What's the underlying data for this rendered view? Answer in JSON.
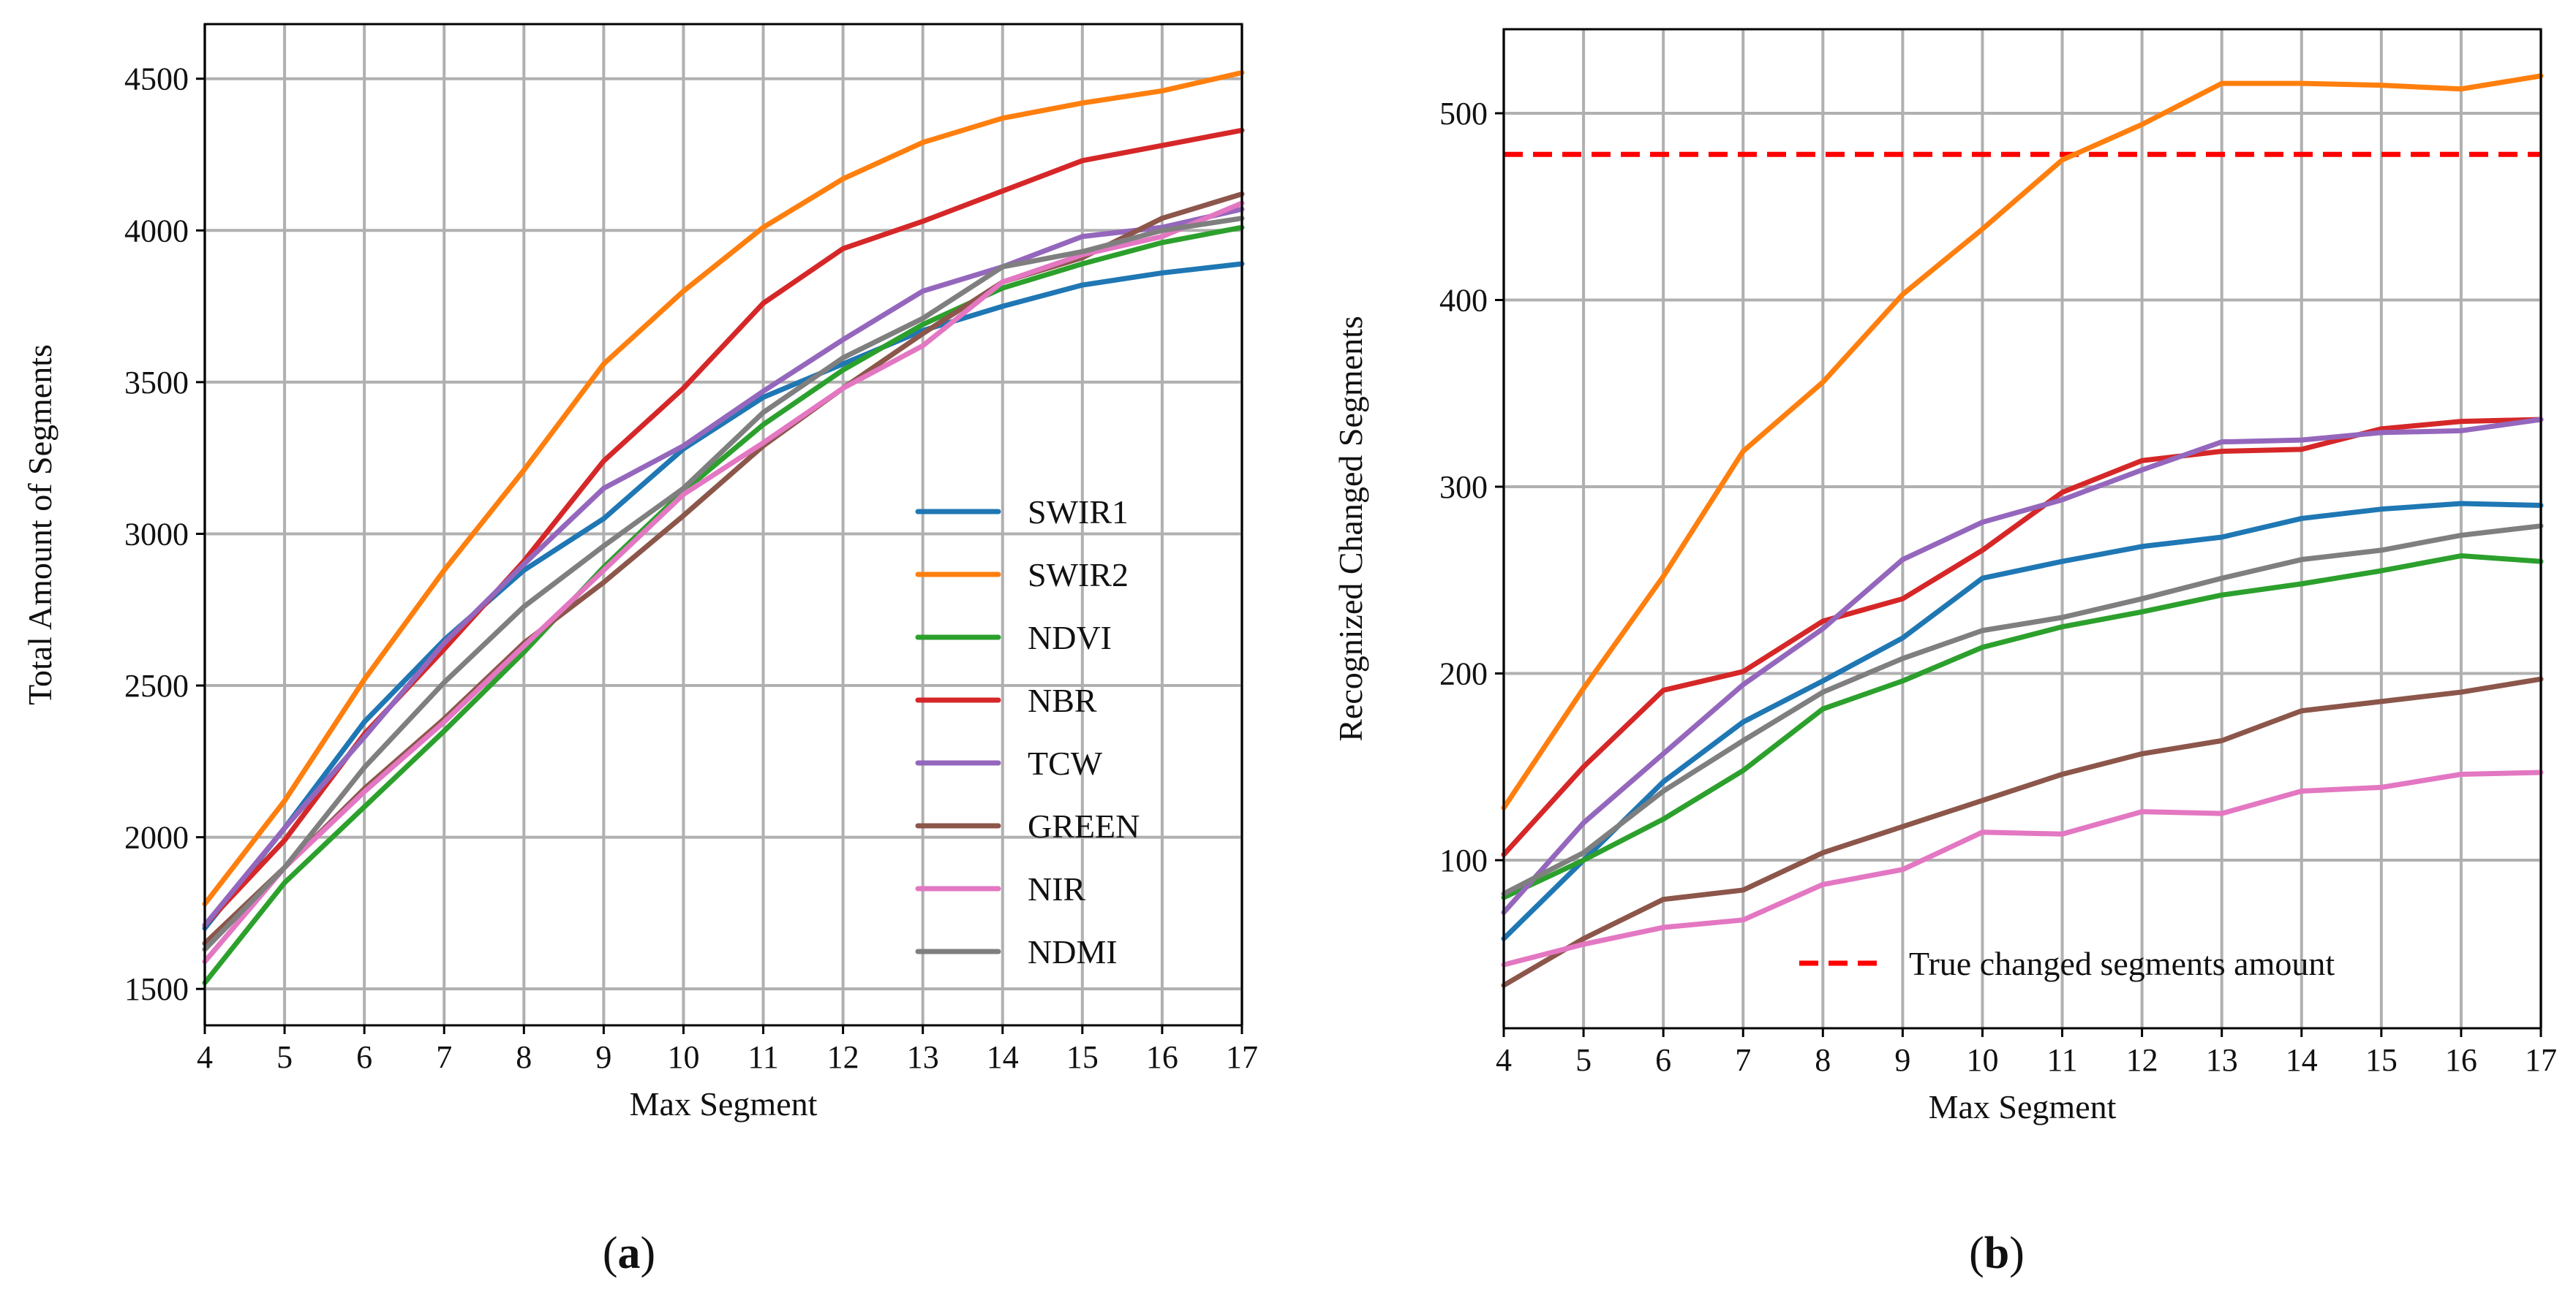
{
  "chart_data": [
    {
      "type": "line",
      "panel_label": "a",
      "xlabel": "Max Segment",
      "ylabel": "Total Amount of Segments",
      "xlim": [
        4,
        17
      ],
      "ylim": [
        1380,
        4680
      ],
      "xticks": [
        4,
        5,
        6,
        7,
        8,
        9,
        10,
        11,
        12,
        13,
        14,
        15,
        16,
        17
      ],
      "yticks": [
        1500,
        2000,
        2500,
        3000,
        3500,
        4000,
        4500
      ],
      "grid": true,
      "legend_position": "lower-right",
      "x": [
        4,
        5,
        6,
        7,
        8,
        9,
        10,
        11,
        12,
        13,
        14,
        15,
        16,
        17
      ],
      "series": [
        {
          "name": "SWIR1",
          "color": "#1f77b4",
          "values": [
            1700,
            2030,
            2380,
            2650,
            2880,
            3050,
            3280,
            3450,
            3560,
            3670,
            3750,
            3820,
            3860,
            3890
          ]
        },
        {
          "name": "SWIR2",
          "color": "#ff7f0e",
          "values": [
            1780,
            2120,
            2520,
            2880,
            3210,
            3560,
            3800,
            4010,
            4170,
            4290,
            4370,
            4420,
            4460,
            4520
          ]
        },
        {
          "name": "NDVI",
          "color": "#2ca02c",
          "values": [
            1520,
            1850,
            2100,
            2350,
            2610,
            2890,
            3140,
            3360,
            3540,
            3690,
            3810,
            3890,
            3960,
            4010
          ]
        },
        {
          "name": "NBR",
          "color": "#d62728",
          "values": [
            1710,
            1990,
            2340,
            2620,
            2910,
            3240,
            3480,
            3760,
            3940,
            4030,
            4130,
            4230,
            4280,
            4330
          ]
        },
        {
          "name": "TCW",
          "color": "#9467bd",
          "values": [
            1710,
            2030,
            2330,
            2640,
            2900,
            3150,
            3290,
            3470,
            3640,
            3800,
            3880,
            3980,
            4010,
            4070
          ]
        },
        {
          "name": "GREEN",
          "color": "#8c564b",
          "values": [
            1650,
            1900,
            2160,
            2390,
            2640,
            2840,
            3060,
            3290,
            3480,
            3660,
            3830,
            3910,
            4040,
            4120
          ]
        },
        {
          "name": "NIR",
          "color": "#e377c2",
          "values": [
            1590,
            1900,
            2150,
            2380,
            2630,
            2880,
            3130,
            3300,
            3480,
            3620,
            3830,
            3920,
            3980,
            4090
          ]
        },
        {
          "name": "NDMI",
          "color": "#7f7f7f",
          "values": [
            1630,
            1900,
            2230,
            2510,
            2760,
            2960,
            3150,
            3400,
            3580,
            3710,
            3880,
            3930,
            4000,
            4040
          ]
        }
      ]
    },
    {
      "type": "line",
      "panel_label": "b",
      "xlabel": "Max Segment",
      "ylabel": "Recognized Changed Segments",
      "xlim": [
        4,
        17
      ],
      "ylim": [
        10,
        545
      ],
      "xticks": [
        4,
        5,
        6,
        7,
        8,
        9,
        10,
        11,
        12,
        13,
        14,
        15,
        16,
        17
      ],
      "yticks": [
        100,
        200,
        300,
        400,
        500
      ],
      "grid": true,
      "legend_position": "lower-right",
      "x": [
        4,
        5,
        6,
        7,
        8,
        9,
        10,
        11,
        12,
        13,
        14,
        15,
        16,
        17
      ],
      "reference_line": {
        "name": "True changed segments amount",
        "value": 478,
        "color": "#ff0000",
        "style": "dashed"
      },
      "series": [
        {
          "name": "SWIR1",
          "color": "#1f77b4",
          "values": [
            58,
            100,
            142,
            174,
            196,
            219,
            251,
            260,
            268,
            273,
            283,
            288,
            291,
            290
          ]
        },
        {
          "name": "SWIR2",
          "color": "#ff7f0e",
          "values": [
            128,
            192,
            252,
            319,
            356,
            403,
            438,
            475,
            494,
            516,
            516,
            515,
            513,
            520
          ]
        },
        {
          "name": "NDVI",
          "color": "#2ca02c",
          "values": [
            80,
            100,
            122,
            148,
            181,
            196,
            214,
            225,
            233,
            242,
            248,
            255,
            263,
            260
          ]
        },
        {
          "name": "NBR",
          "color": "#d62728",
          "values": [
            103,
            150,
            191,
            201,
            228,
            240,
            266,
            297,
            314,
            319,
            320,
            331,
            335,
            336
          ]
        },
        {
          "name": "TCW",
          "color": "#9467bd",
          "values": [
            72,
            120,
            157,
            194,
            224,
            261,
            281,
            293,
            309,
            324,
            325,
            329,
            330,
            336
          ]
        },
        {
          "name": "GREEN",
          "color": "#8c564b",
          "values": [
            33,
            58,
            79,
            84,
            104,
            118,
            132,
            146,
            157,
            164,
            180,
            185,
            190,
            197
          ]
        },
        {
          "name": "NIR",
          "color": "#e377c2",
          "values": [
            44,
            55,
            64,
            68,
            87,
            95,
            115,
            114,
            126,
            125,
            137,
            139,
            146,
            147
          ]
        },
        {
          "name": "NDMI",
          "color": "#7f7f7f",
          "values": [
            82,
            104,
            137,
            164,
            190,
            208,
            223,
            230,
            240,
            251,
            261,
            266,
            274,
            279
          ]
        }
      ]
    }
  ]
}
